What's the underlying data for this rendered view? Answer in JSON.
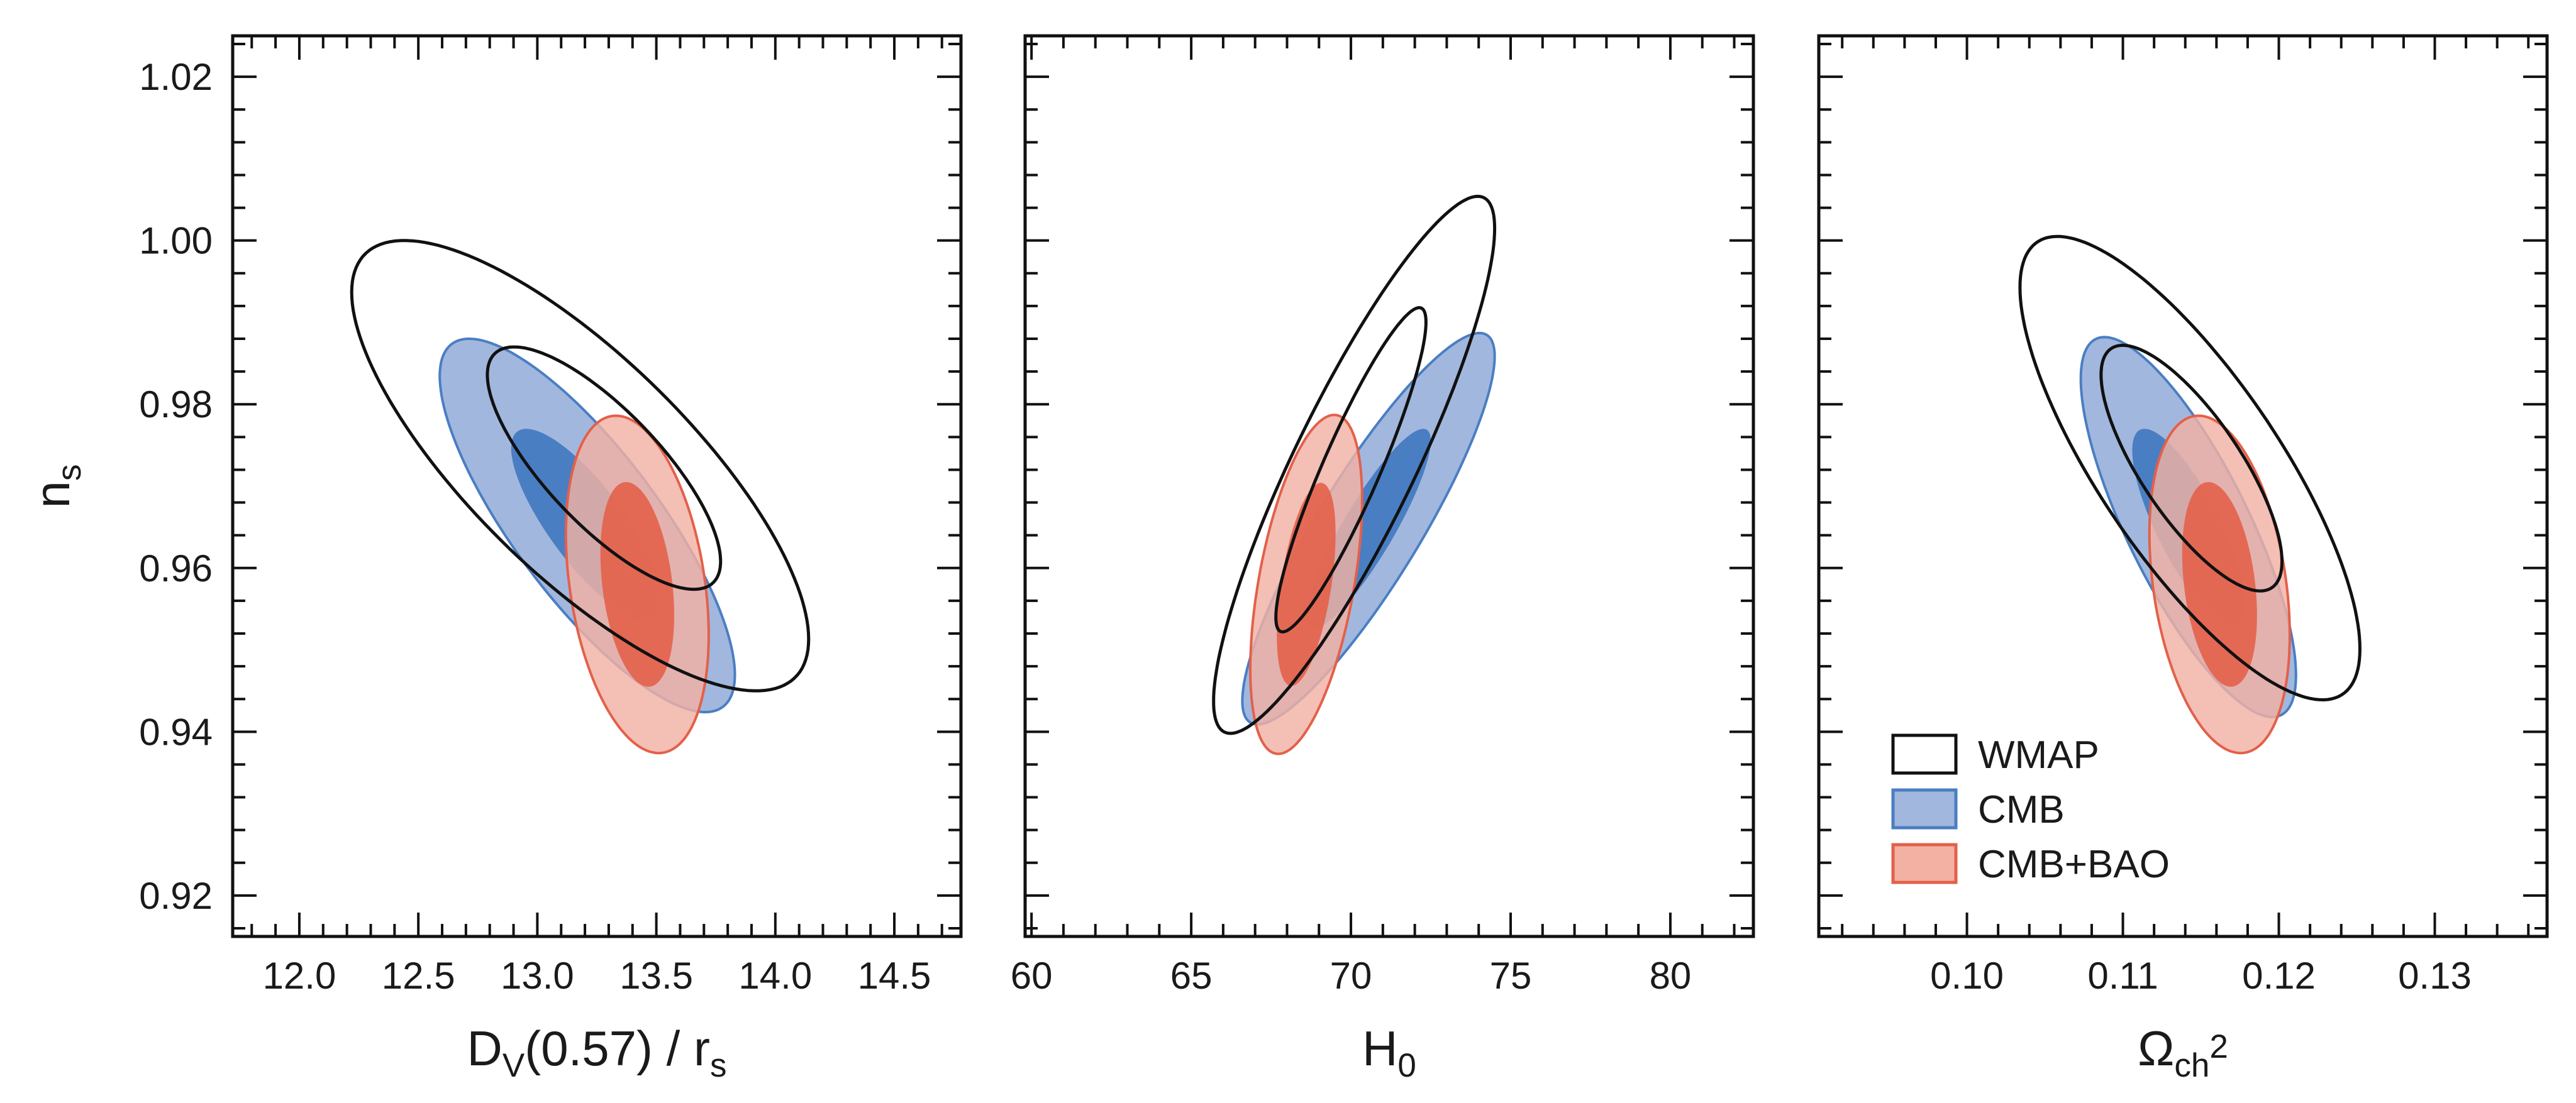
{
  "chart_data": [
    {
      "type": "contour",
      "xlabel": "D_V(0.57) / r_s",
      "ylabel": "n_s",
      "xlim": [
        11.72,
        14.78
      ],
      "ylim": [
        0.915,
        1.025
      ],
      "xticks": [
        "12.0",
        "12.5",
        "13.0",
        "13.5",
        "14.0",
        "14.5"
      ],
      "yticks": [
        "0.92",
        "0.94",
        "0.96",
        "0.98",
        "1.00",
        "1.02"
      ],
      "series": [
        {
          "name": "WMAP",
          "style": "outline",
          "color": "#111111",
          "contours": [
            {
              "level": "95%",
              "center": [
                13.18,
                0.9725
              ],
              "rx": 0.96,
              "ry": 0.0275,
              "rho": -0.77
            },
            {
              "level": "68%",
              "center": [
                13.28,
                0.9722
              ],
              "rx": 0.49,
              "ry": 0.0148,
              "rho": -0.77
            }
          ]
        },
        {
          "name": "CMB",
          "style": "filled",
          "color": "#4a7ec3",
          "contours": [
            {
              "level": "95%",
              "center": [
                13.21,
                0.9652
              ],
              "rx": 0.62,
              "ry": 0.0228,
              "rho": -0.8
            },
            {
              "level": "68%",
              "center": [
                13.21,
                0.9652
              ],
              "rx": 0.32,
              "ry": 0.0118,
              "rho": -0.8
            }
          ]
        },
        {
          "name": "CMB+BAO",
          "style": "filled",
          "color": "#e3604a",
          "contours": [
            {
              "level": "95%",
              "center": [
                13.42,
                0.958
              ],
              "rx": 0.3,
              "ry": 0.0206,
              "rho": -0.3
            },
            {
              "level": "68%",
              "center": [
                13.42,
                0.958
              ],
              "rx": 0.155,
              "ry": 0.0125,
              "rho": -0.3
            }
          ]
        }
      ]
    },
    {
      "type": "contour",
      "xlabel": "H_0",
      "ylabel": "",
      "xlim": [
        59.8,
        82.6
      ],
      "ylim": [
        0.915,
        1.025
      ],
      "xticks": [
        "60",
        "65",
        "70",
        "75",
        "80"
      ],
      "yticks": [],
      "series": [
        {
          "name": "WMAP",
          "style": "outline",
          "color": "#111111",
          "contours": [
            {
              "level": "95%",
              "center": [
                70.1,
                0.9726
              ],
              "rx": 4.4,
              "ry": 0.0328,
              "rho": 0.88
            },
            {
              "level": "68%",
              "center": [
                70.0,
                0.972
              ],
              "rx": 2.35,
              "ry": 0.0198,
              "rho": 0.91
            }
          ]
        },
        {
          "name": "CMB",
          "style": "filled",
          "color": "#4a7ec3",
          "contours": [
            {
              "level": "95%",
              "center": [
                70.55,
                0.9648
              ],
              "rx": 3.95,
              "ry": 0.0239,
              "rho": 0.88
            },
            {
              "level": "68%",
              "center": [
                70.55,
                0.9648
              ],
              "rx": 1.95,
              "ry": 0.0122,
              "rho": 0.88
            }
          ]
        },
        {
          "name": "CMB+BAO",
          "style": "filled",
          "color": "#e3604a",
          "contours": [
            {
              "level": "95%",
              "center": [
                68.6,
                0.958
              ],
              "rx": 1.75,
              "ry": 0.0207,
              "rho": 0.5
            },
            {
              "level": "68%",
              "center": [
                68.6,
                0.958
              ],
              "rx": 0.92,
              "ry": 0.0124,
              "rho": 0.5
            }
          ]
        }
      ]
    },
    {
      "type": "contour",
      "xlabel": "Ω_c h^2",
      "ylabel": "",
      "xlim": [
        0.0905,
        0.1372
      ],
      "ylim": [
        0.915,
        1.025
      ],
      "xticks": [
        "0.10",
        "0.11",
        "0.12",
        "0.13"
      ],
      "yticks": [],
      "series": [
        {
          "name": "WMAP",
          "style": "outline",
          "color": "#111111",
          "contours": [
            {
              "level": "95%",
              "center": [
                0.1143,
                0.9722
              ],
              "rx": 0.0109,
              "ry": 0.0283,
              "rho": -0.78
            },
            {
              "level": "68%",
              "center": [
                0.1144,
                0.9722
              ],
              "rx": 0.0058,
              "ry": 0.015,
              "rho": -0.76
            }
          ]
        },
        {
          "name": "CMB",
          "style": "filled",
          "color": "#4a7ec3",
          "contours": [
            {
              "level": "95%",
              "center": [
                0.1142,
                0.965
              ],
              "rx": 0.0069,
              "ry": 0.0232,
              "rho": -0.78
            },
            {
              "level": "68%",
              "center": [
                0.1142,
                0.965
              ],
              "rx": 0.0036,
              "ry": 0.012,
              "rho": -0.78
            }
          ]
        },
        {
          "name": "CMB+BAO",
          "style": "filled",
          "color": "#e3604a",
          "contours": [
            {
              "level": "95%",
              "center": [
                0.1162,
                0.958
              ],
              "rx": 0.0045,
              "ry": 0.0206,
              "rho": -0.3
            },
            {
              "level": "68%",
              "center": [
                0.1162,
                0.958
              ],
              "rx": 0.0024,
              "ry": 0.0125,
              "rho": -0.3
            }
          ]
        }
      ]
    }
  ],
  "legend": {
    "placement": "bottom-left of third panel",
    "items": [
      {
        "label": "WMAP",
        "style": "outline"
      },
      {
        "label": "CMB",
        "style": "filled"
      },
      {
        "label": "CMB+BAO",
        "style": "filled"
      }
    ]
  },
  "colors": {
    "cmb_95": "#a2b7dd",
    "cmb_68": "#4a7ec3",
    "cmb_edge": "#4a7ec3",
    "bao_95": "#f2b1a3",
    "bao_68": "#e3604a",
    "bao_edge": "#e3604a",
    "wmap_edge": "#111111"
  }
}
